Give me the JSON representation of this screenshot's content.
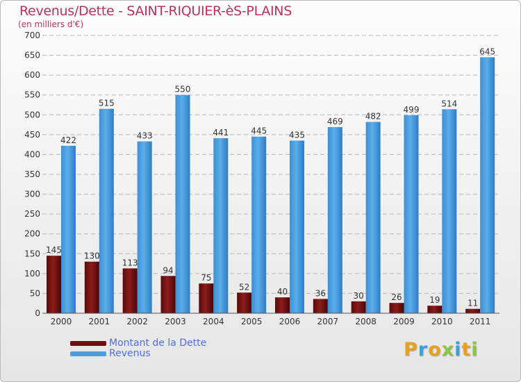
{
  "chart_data": {
    "type": "bar",
    "title": "Revenus/Dette - SAINT-RIQUIER-èS-PLAINS",
    "subtitle": "(en milliers d'€)",
    "categories": [
      "2000",
      "2001",
      "2002",
      "2003",
      "2004",
      "2005",
      "2006",
      "2007",
      "2008",
      "2009",
      "2010",
      "2011"
    ],
    "series": [
      {
        "name": "Montant de la Dette",
        "color": "#7a1212",
        "values": [
          145,
          130,
          113,
          94,
          75,
          52,
          40,
          36,
          30,
          26,
          19,
          11
        ]
      },
      {
        "name": "Revenus",
        "color": "#4a9ee0",
        "values": [
          422,
          515,
          433,
          550,
          441,
          445,
          435,
          469,
          482,
          499,
          514,
          645
        ]
      }
    ],
    "ylim": [
      0,
      700
    ],
    "yticks": [
      0,
      50,
      100,
      150,
      200,
      250,
      300,
      350,
      400,
      450,
      500,
      550,
      600,
      650,
      700
    ],
    "grid": true,
    "legend_position": "bottom-left"
  },
  "logo": {
    "letters": [
      "P",
      "r",
      "o",
      "x",
      "i",
      "t",
      "i"
    ]
  }
}
